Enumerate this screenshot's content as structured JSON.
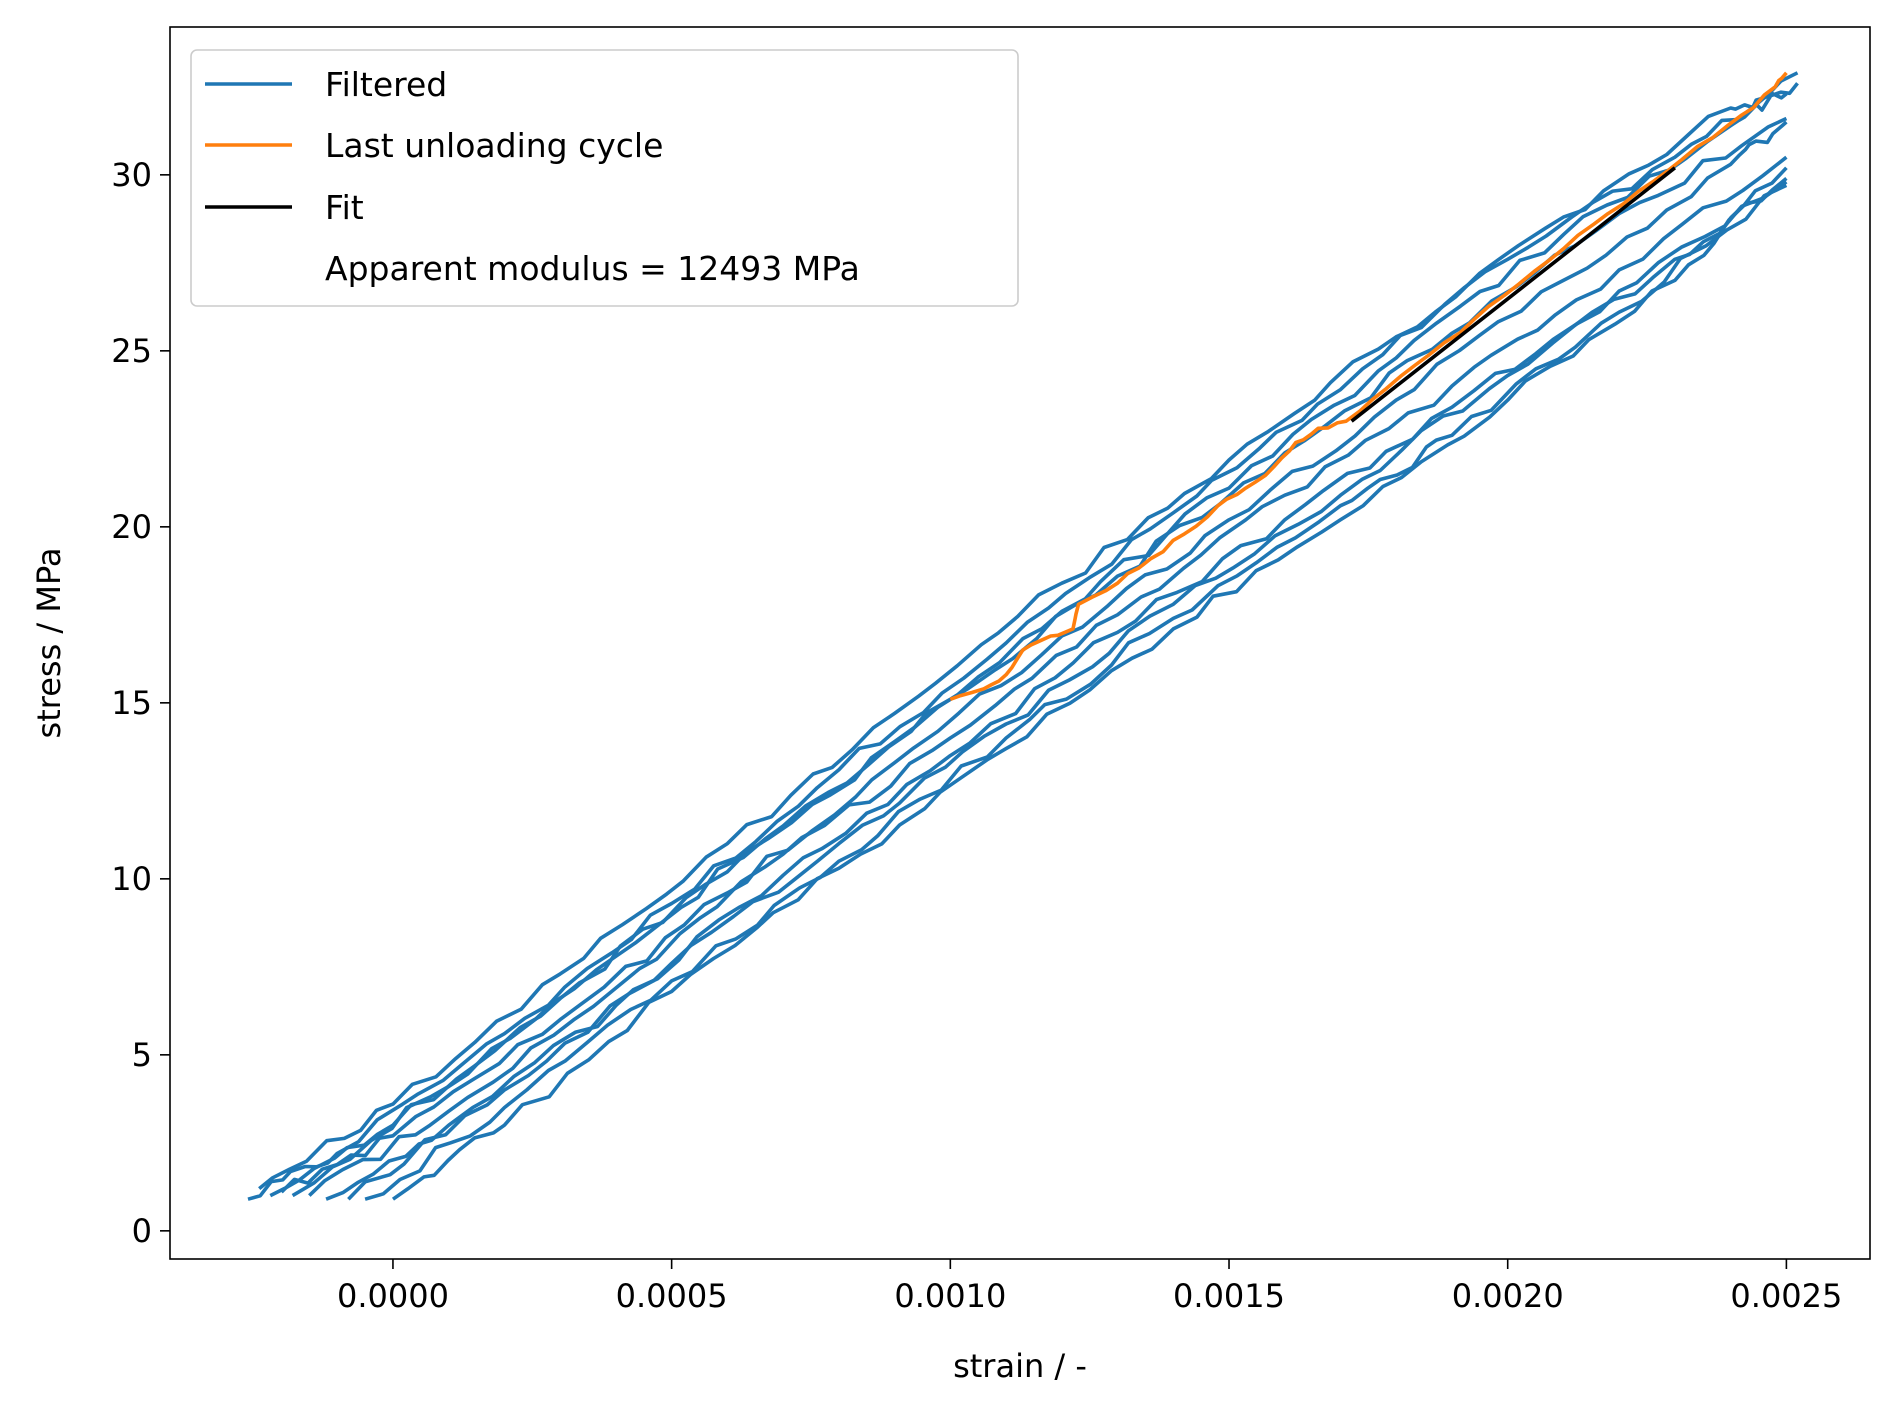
{
  "chart_data": {
    "type": "line",
    "title": "",
    "xlabel": "strain / -",
    "ylabel": "stress / MPa",
    "xlim": [
      -0.0004,
      0.00265
    ],
    "ylim": [
      -0.8,
      34.2
    ],
    "xticks": [
      0.0,
      0.0005,
      0.001,
      0.0015,
      0.002,
      0.0025
    ],
    "xtick_labels": [
      "0.0000",
      "0.0005",
      "0.0010",
      "0.0015",
      "0.0020",
      "0.0025"
    ],
    "yticks": [
      0,
      5,
      10,
      15,
      20,
      25,
      30
    ],
    "ytick_labels": [
      "0",
      "5",
      "10",
      "15",
      "20",
      "25",
      "30"
    ],
    "grid": false,
    "legend_position": "top-left",
    "series": [
      {
        "name": "Filtered",
        "color": "#1f77b4",
        "note": "many overlapping load/unload cycles",
        "cycles": [
          {
            "x": [
              -0.00026,
              -0.0001,
              0.0002,
              0.0005,
              0.0008,
              0.0011,
              0.0014,
              0.0017,
              0.002,
              0.0023,
              0.00252
            ],
            "y": [
              0.9,
              2.2,
              5.6,
              9.3,
              13.1,
              16.7,
              20.4,
              23.9,
              27.6,
              30.5,
              32.9
            ]
          },
          {
            "x": [
              -0.00022,
              0.0,
              0.0003,
              0.0006,
              0.0009,
              0.0012,
              0.0015,
              0.0018,
              0.0021,
              0.0024,
              0.00252
            ],
            "y": [
              1.0,
              3.0,
              6.6,
              10.2,
              13.9,
              17.6,
              21.1,
              24.8,
              28.3,
              31.4,
              32.6
            ]
          },
          {
            "x": [
              -0.00018,
              0.0001,
              0.0004,
              0.0007,
              0.001,
              0.0013,
              0.0016,
              0.0019,
              0.0022,
              0.0025
            ],
            "y": [
              1.0,
              4.1,
              7.8,
              11.5,
              15.1,
              18.6,
              22.1,
              25.5,
              28.9,
              31.6
            ]
          },
          {
            "x": [
              -0.0002,
              0.0,
              0.0003,
              0.0006,
              0.0009,
              0.0012,
              0.0015,
              0.0018,
              0.0021,
              0.0024,
              0.0025
            ],
            "y": [
              1.1,
              2.7,
              6.0,
              9.6,
              13.3,
              16.9,
              20.2,
              23.6,
              27.0,
              30.3,
              31.5
            ]
          },
          {
            "x": [
              -0.00015,
              0.0001,
              0.0004,
              0.0007,
              0.001,
              0.0013,
              0.0016,
              0.0019,
              0.0022,
              0.0025
            ],
            "y": [
              1.0,
              3.4,
              6.9,
              10.7,
              14.0,
              17.5,
              20.9,
              24.0,
              27.3,
              30.5
            ]
          },
          {
            "x": [
              -0.00012,
              0.0001,
              0.0004,
              0.0007,
              0.001,
              0.0013,
              0.0016,
              0.0019,
              0.0022,
              0.0025
            ],
            "y": [
              0.9,
              3.0,
              6.4,
              10.1,
              13.5,
              17.0,
              20.2,
              23.4,
              26.7,
              29.8
            ]
          },
          {
            "x": [
              -8e-05,
              0.0002,
              0.0005,
              0.0008,
              0.0011,
              0.0014,
              0.0017,
              0.002,
              0.0023,
              0.0025
            ],
            "y": [
              0.9,
              4.0,
              7.6,
              11.0,
              14.4,
              17.8,
              20.9,
              24.3,
              27.6,
              29.9
            ]
          },
          {
            "x": [
              0.0,
              0.0002,
              0.0005,
              0.0008,
              0.0011,
              0.0014,
              0.0017,
              0.002,
              0.0023,
              0.0025
            ],
            "y": [
              0.9,
              3.0,
              6.8,
              10.3,
              13.7,
              17.1,
              20.2,
              23.6,
              27.0,
              30.2
            ]
          },
          {
            "x": [
              -0.00024,
              0.0,
              0.0003,
              0.0006,
              0.0009,
              0.0012,
              0.0015,
              0.0018,
              0.0021,
              0.0024,
              0.0025
            ],
            "y": [
              1.2,
              3.6,
              7.3,
              11.0,
              14.7,
              18.4,
              21.9,
              25.4,
              28.8,
              31.9,
              32.3
            ]
          },
          {
            "x": [
              -5e-05,
              0.0002,
              0.0005,
              0.0008,
              0.0011,
              0.0014,
              0.0017,
              0.0019,
              0.0022,
              0.0025
            ],
            "y": [
              0.9,
              3.5,
              7.1,
              10.5,
              14.0,
              17.4,
              20.6,
              22.6,
              26.1,
              29.7
            ]
          }
        ]
      },
      {
        "name": "Last unloading cycle",
        "color": "#ff7f0e",
        "x": [
          0.001,
          0.00106,
          0.0011,
          0.00113,
          0.00118,
          0.00122,
          0.00123,
          0.0013,
          0.00136,
          0.00142,
          0.00148,
          0.00153,
          0.00158,
          0.00162,
          0.00166,
          0.00171,
          0.00178,
          0.00186,
          0.00194,
          0.00202,
          0.0021,
          0.00218,
          0.00226,
          0.00234,
          0.00242,
          0.00248,
          0.0025
        ],
        "y": [
          15.1,
          15.4,
          15.8,
          16.5,
          16.9,
          17.1,
          17.8,
          18.4,
          19.1,
          19.8,
          20.6,
          21.1,
          21.7,
          22.4,
          22.8,
          23.0,
          23.9,
          24.9,
          25.9,
          26.9,
          27.9,
          28.9,
          29.8,
          30.8,
          31.7,
          32.5,
          32.9
        ]
      },
      {
        "name": "Fit",
        "color": "#000000",
        "x": [
          0.00172,
          0.0023
        ],
        "y": [
          23.0,
          30.2
        ]
      }
    ],
    "legend": {
      "entries": [
        "Filtered",
        "Last unloading cycle",
        "Fit"
      ],
      "annotation": "Apparent modulus = 12493 MPa"
    }
  }
}
